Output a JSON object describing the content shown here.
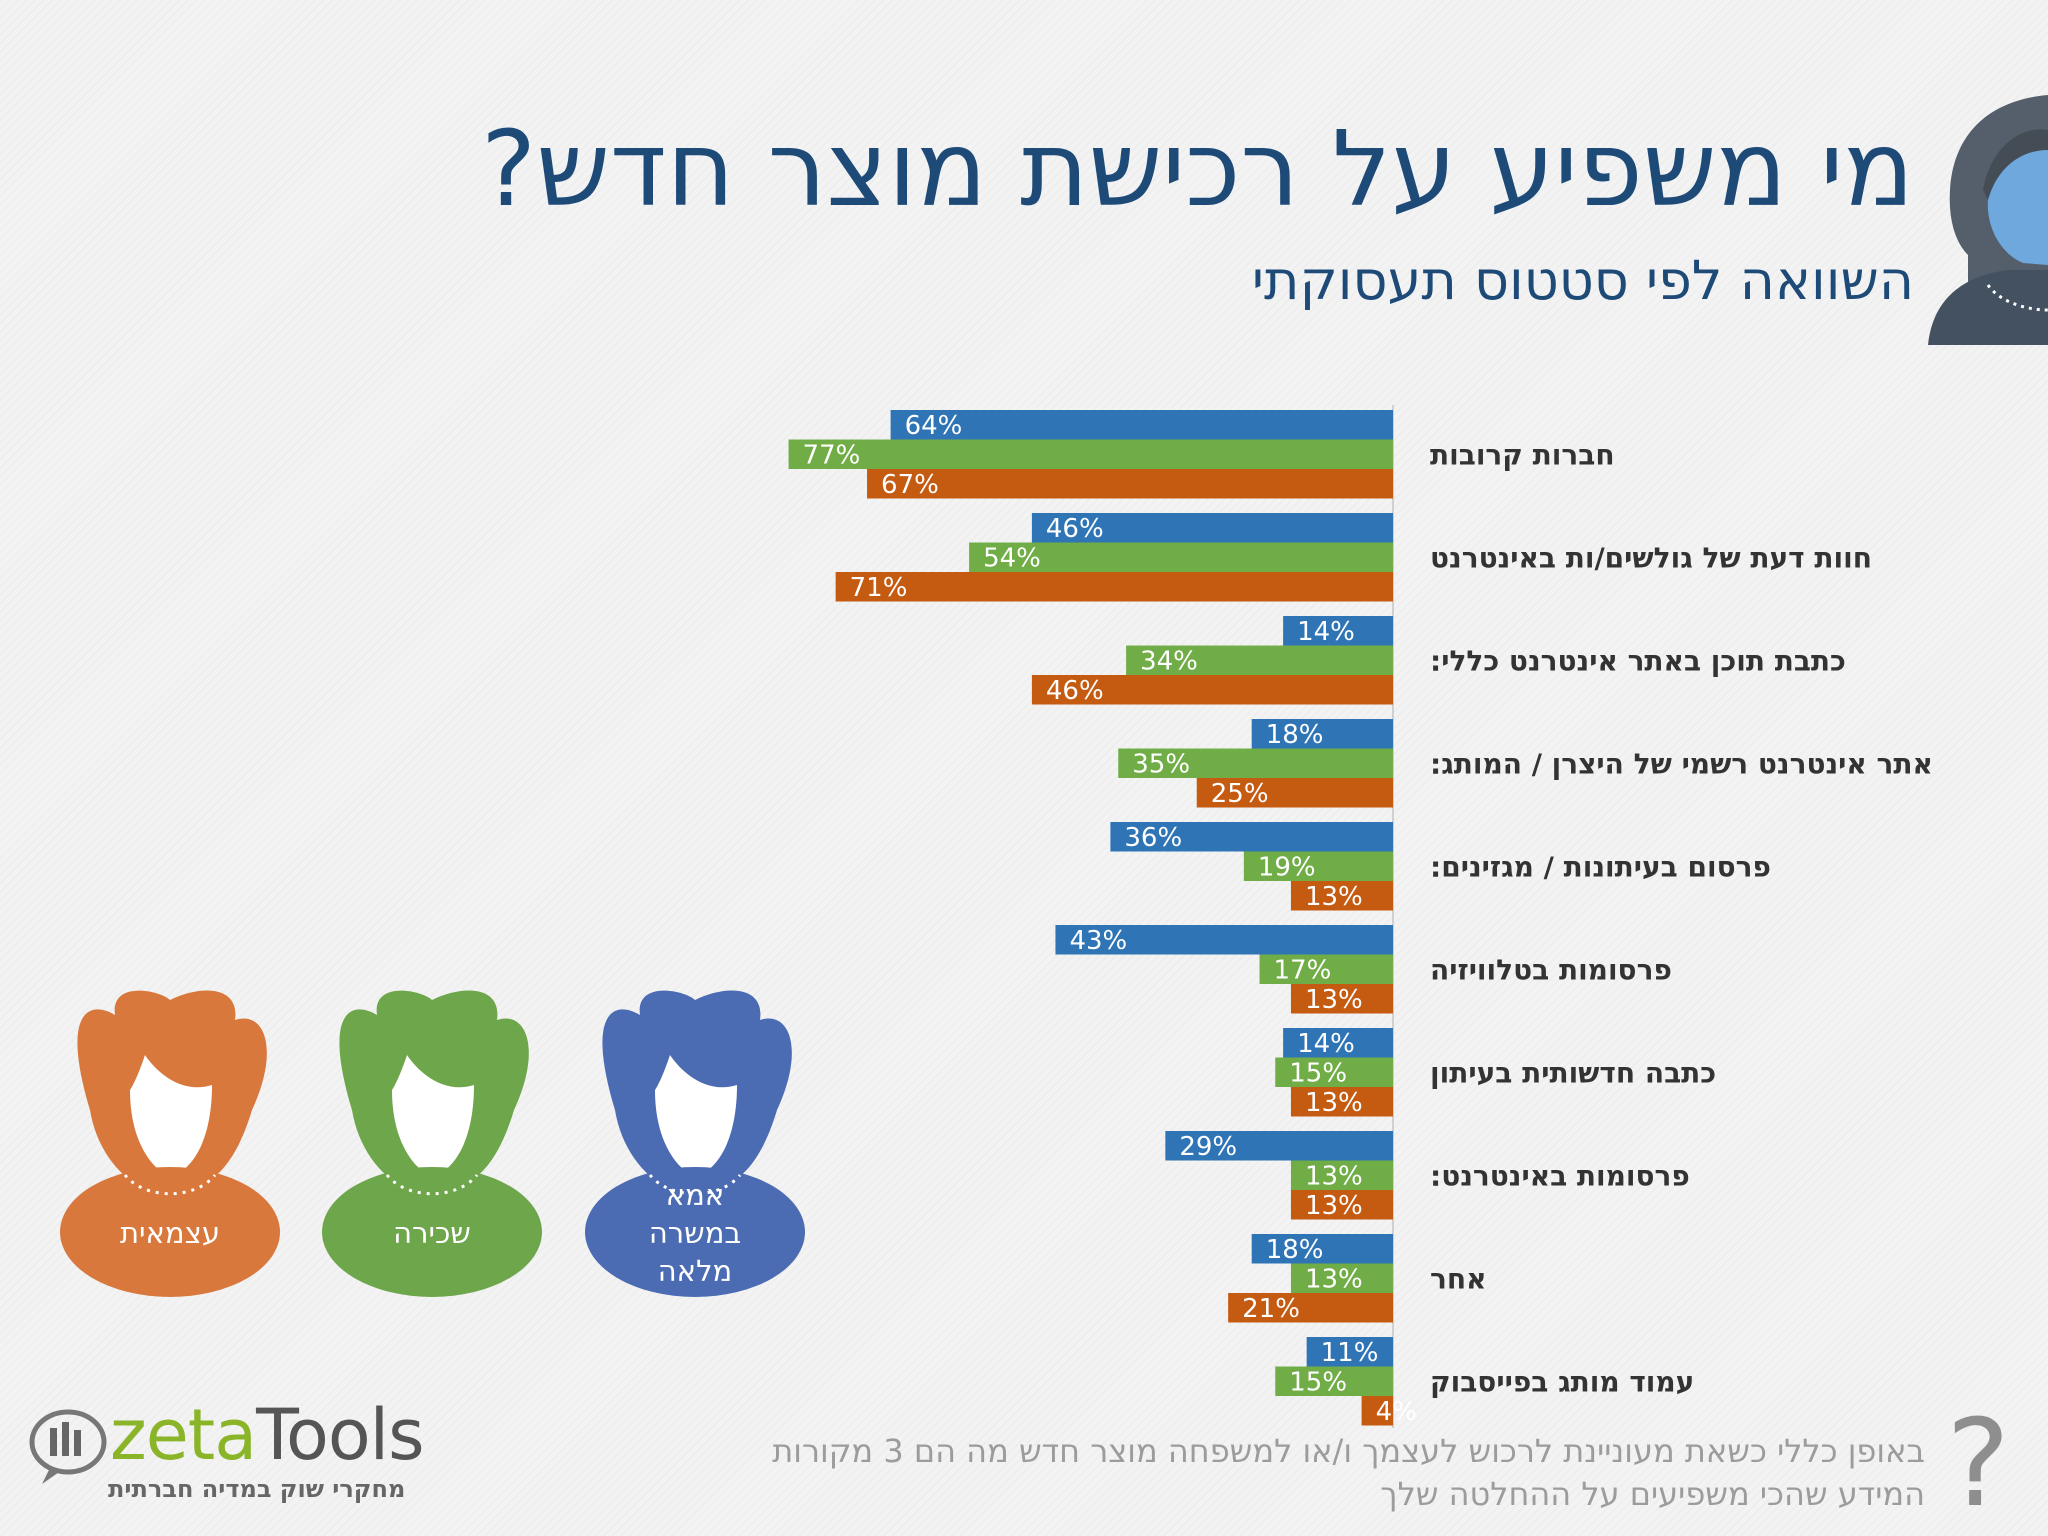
{
  "title": "מי משפיע על רכישת מוצר חדש?",
  "subtitle": "השוואה לפי סטטוס תעסוקתי",
  "colors": {
    "blue": "#2f75b6",
    "green": "#71ad47",
    "orange": "#c55a11",
    "persona_blue": "#4b6bb3",
    "persona_green": "#6ea64b",
    "persona_orange": "#d9783c",
    "corner_avatar": "#6fa8dc"
  },
  "personas": [
    {
      "label": "עצמאית",
      "color_key": "orange"
    },
    {
      "label": "שכירה",
      "color_key": "green"
    },
    {
      "label_lines": [
        "אמא",
        "במשרה",
        "מלאה"
      ],
      "color_key": "blue"
    }
  ],
  "chart_data": {
    "type": "bar",
    "orientation": "horizontal",
    "categories": [
      "חברות קרובות",
      "חוות דעת של גולשים/ות באינטרנט",
      "כתבת תוכן באתר אינטרנט כללי:",
      "אתר אינטרנט רשמי של היצרן / המותג:",
      "פרסום בעיתונות / מגזינים:",
      "פרסומות בטלוויזיה",
      "כתבה חדשותית בעיתון",
      "פרסומות באינטרנט:",
      "אחר",
      "עמוד מותג בפייסבוק"
    ],
    "series": [
      {
        "color": "#2f75b6",
        "values": [
          64,
          46,
          14,
          18,
          36,
          43,
          14,
          29,
          18,
          11
        ]
      },
      {
        "color": "#71ad47",
        "values": [
          77,
          54,
          34,
          35,
          19,
          17,
          15,
          13,
          13,
          15
        ]
      },
      {
        "color": "#c55a11",
        "values": [
          67,
          71,
          46,
          25,
          13,
          13,
          13,
          13,
          21,
          4
        ]
      }
    ],
    "value_suffix": "%",
    "xlim": [
      0,
      100
    ]
  },
  "footnote": "באופן כללי כשאת מעוניינת לרכוש לעצמך ו/או למשפחה מוצר חדש מה הם 3 מקורות המידע שהכי משפיעים על ההחלטה שלך",
  "question_mark": "?",
  "logo": {
    "word_a": "zeta",
    "word_b": "Tools",
    "tagline": "מחקרי שוק במדיה חברתית"
  }
}
